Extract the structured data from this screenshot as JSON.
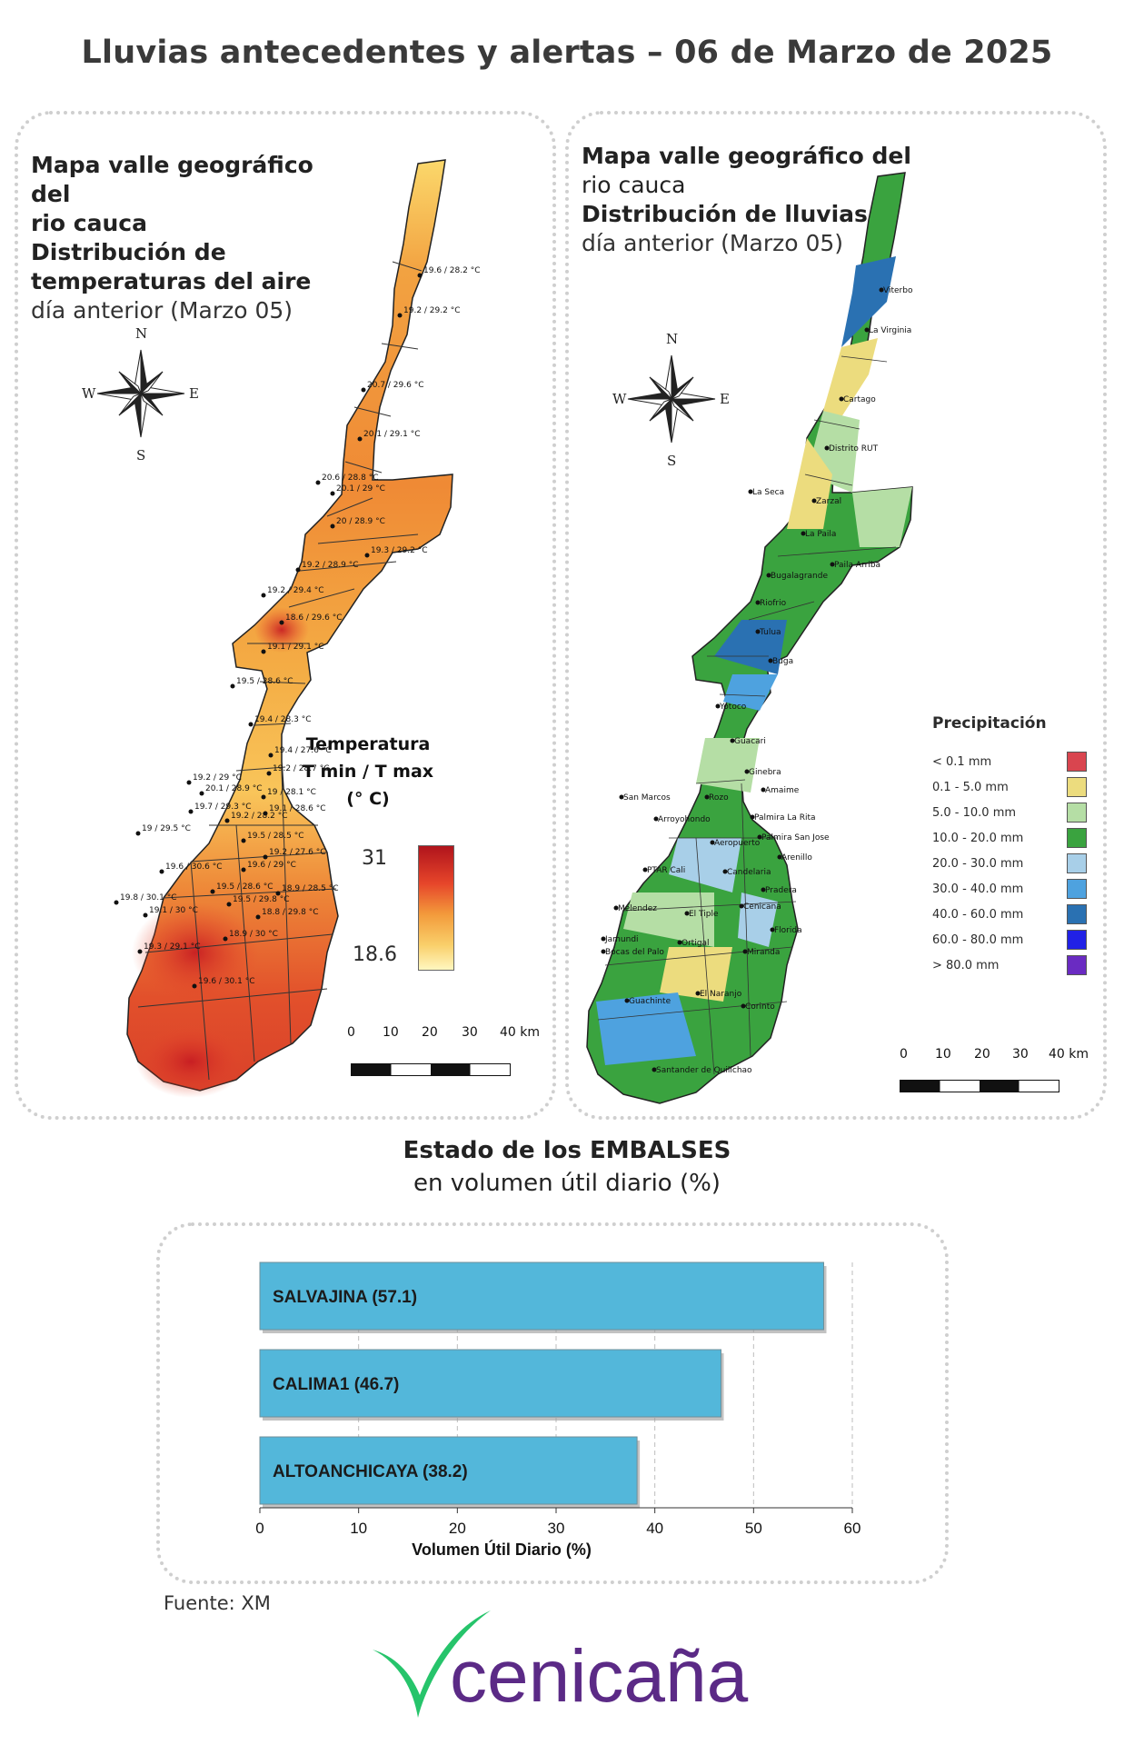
{
  "title": "Lluvias antecedentes y alertas – 06 de Marzo de 2025",
  "temperature_map": {
    "title_lines_bold": [
      "Mapa valle geográfico del",
      "rio cauca",
      "Distribución de",
      "temperaturas del aire"
    ],
    "subtitle": "día anterior (Marzo 05)",
    "compass": {
      "n": "N",
      "s": "S",
      "e": "E",
      "w": "W"
    },
    "legend": {
      "title_lines": [
        "Temperatura",
        "T min / T max",
        "(° C)"
      ],
      "max": "31",
      "min": "18.6",
      "colors": [
        "#b0141c",
        "#e6452a",
        "#f39a3b",
        "#f9cf6a",
        "#fff7c0"
      ]
    },
    "scale_ticks": [
      "0",
      "10",
      "20",
      "30",
      "40 km"
    ],
    "stations": [
      "19.6 / 28.2 °C",
      "19.2 / 29.2 °C",
      "20.7 / 29.6 °C",
      "20.1 / 29.1 °C",
      "20.6 / 28.8 °C",
      "20.1 / 29 °C",
      "20 / 28.9 °C",
      "19.3 / 29.2 °C",
      "19.2 / 28.9 °C",
      "19.2 / 29.4 °C",
      "18.6 / 29.6 °C",
      "19.1 / 29.1 °C",
      "19.5 / 28.6 °C",
      "19.4 / 28.3 °C",
      "19.4 / 27.6 °C",
      "19.2 / 28.7 °C",
      "19.2 / 29 °C",
      "20.1 / 28.9 °C",
      "19 / 28.1 °C",
      "19.7 / 29.3 °C",
      "19.1 / 28.6 °C",
      "19.2 / 28.2 °C",
      "19 / 29.5 °C",
      "19.5 / 28.5 °C",
      "19.2 / 27.6 °C",
      "19.6 / 30.6 °C",
      "19.6 / 29 °C",
      "19.5 / 28.6 °C",
      "18.9 / 28.5 °C",
      "19.8 / 30.1 °C",
      "19.5 / 29.8 °C",
      "19.1 / 30 °C",
      "18.8 / 29.8 °C",
      "18.9 / 30 °C",
      "19.3 / 29.1 °C",
      "19.6 / 30.1 °C"
    ]
  },
  "rain_map": {
    "title_lines_bold": [
      "Mapa valle geográfico del",
      "rio cauca"
    ],
    "title_strong": "Distribución de lluvias",
    "subtitle": "día anterior (Marzo 05)",
    "compass": {
      "n": "N",
      "s": "S",
      "e": "E",
      "w": "W"
    },
    "legend": {
      "title": "Precipitación",
      "items": [
        {
          "label": "< 0.1 mm",
          "color": "#d9454f"
        },
        {
          "label": "0.1 - 5.0 mm",
          "color": "#ecdc7e"
        },
        {
          "label": "5.0 - 10.0 mm",
          "color": "#b5dea5"
        },
        {
          "label": "10.0 - 20.0 mm",
          "color": "#3aa33f"
        },
        {
          "label": "20.0 - 30.0 mm",
          "color": "#a8cfe8"
        },
        {
          "label": "30.0 - 40.0 mm",
          "color": "#4ea2df"
        },
        {
          "label": "40.0 - 60.0 mm",
          "color": "#2a71b2"
        },
        {
          "label": "60.0 - 80.0 mm",
          "color": "#2121e6"
        },
        {
          "label": "> 80.0 mm",
          "color": "#6a2bc2"
        }
      ]
    },
    "scale_ticks": [
      "0",
      "10",
      "20",
      "30",
      "40 km"
    ],
    "stations": [
      "Viterbo",
      "La Virginia",
      "Cartago",
      "Distrito RUT",
      "La Seca",
      "Zarzal",
      "La Paila",
      "Paila Arriba",
      "Bugalagrande",
      "Riofrio",
      "Tulua",
      "Buga",
      "Yotoco",
      "Guacari",
      "Ginebra",
      "San Marcos",
      "Rozo",
      "Amaime",
      "Palmira La Rita",
      "Arroyohondo",
      "Palmira San Jose",
      "Aeropuerto",
      "Arenillo",
      "PTAR Cali",
      "Candelaria",
      "Pradera",
      "Melendez",
      "El Tiple",
      "Cenicana",
      "Jamundi",
      "Bocas del Palo",
      "Ortigal",
      "Florida",
      "Miranda",
      "Guachinte",
      "El Naranjo",
      "Corinto",
      "Santander de Quilichao"
    ]
  },
  "reservoirs": {
    "heading_bold": "Estado de los EMBALSES",
    "heading_sub": "en volumen útil diario (%)",
    "source": "Fuente: XM"
  },
  "chart_data": {
    "type": "bar",
    "orientation": "horizontal",
    "categories": [
      "SALVAJINA",
      "CALIMA1",
      "ALTOANCHICAYA"
    ],
    "values": [
      57.1,
      46.7,
      38.2
    ],
    "bar_labels": [
      "SALVAJINA (57.1)",
      "CALIMA1 (46.7)",
      "ALTOANCHICAYA (38.2)"
    ],
    "xlabel": "Volumen Útil Diario (%)",
    "xlim": [
      0,
      60
    ],
    "xticks": [
      "0",
      "10",
      "20",
      "30",
      "40",
      "50",
      "60"
    ],
    "bar_color": "#53b7da",
    "grid": "vertical dashed"
  },
  "logo": {
    "text": "cenicaña",
    "color_text": "#5b2a86",
    "color_mark": "#26c46b"
  }
}
